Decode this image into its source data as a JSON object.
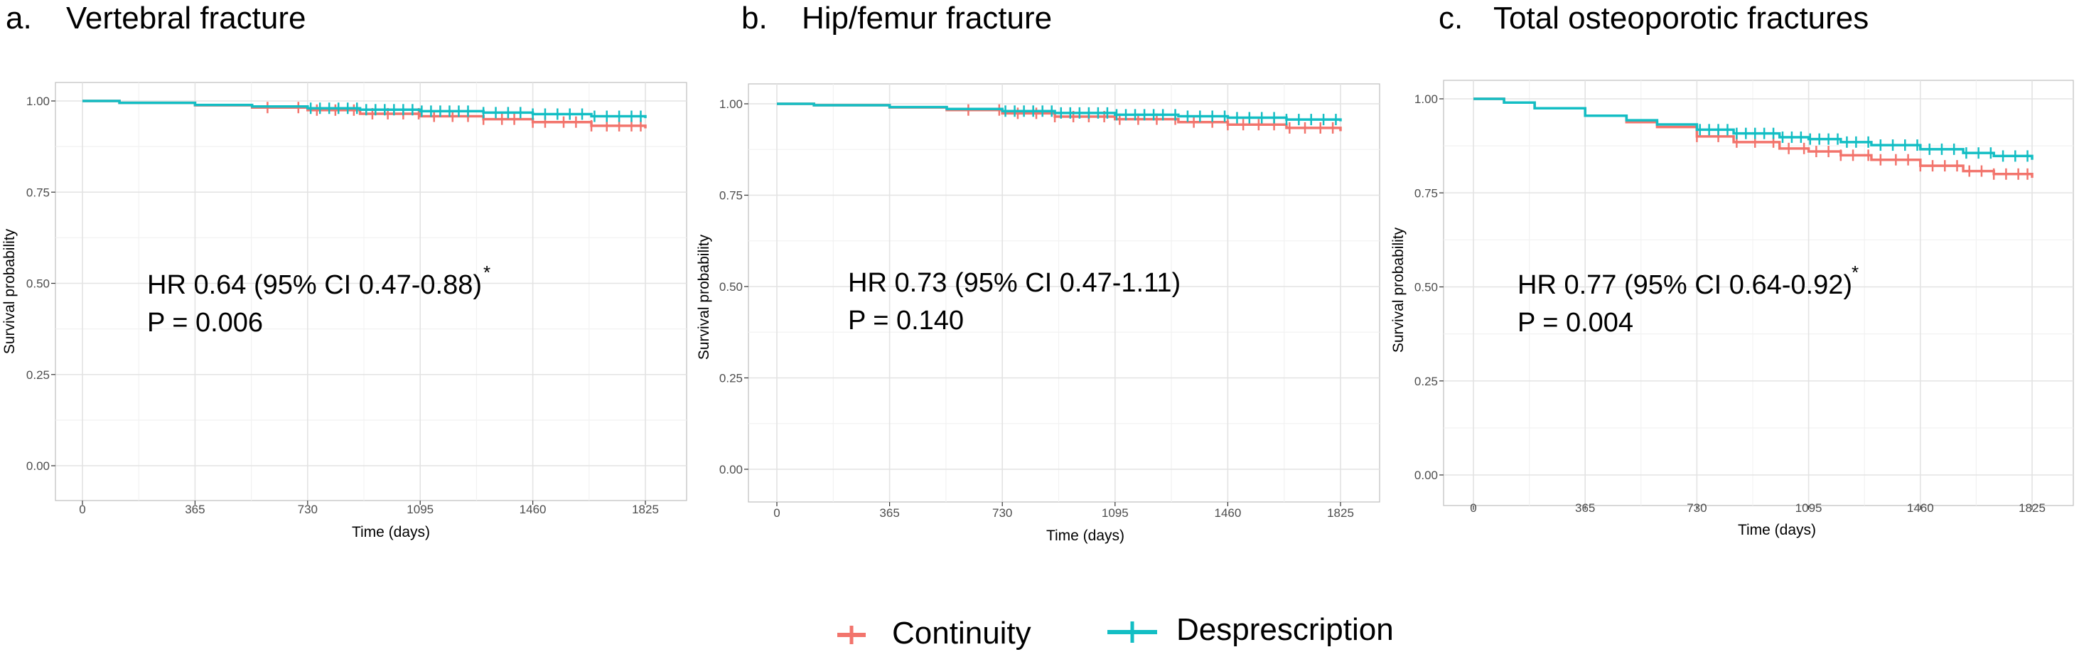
{
  "legend": {
    "items": [
      {
        "label": "Continuity",
        "color": "#F2746C"
      },
      {
        "label": "Desprescription",
        "color": "#13BEC4"
      }
    ]
  },
  "panels": [
    {
      "title_letter": "a.",
      "title": "Vertebral fracture",
      "annotation_line1": "HR 0.64 (95% CI 0.47-0.88)",
      "annotation_star": "*",
      "annotation_line2": "P = 0.006",
      "xlabel": "Time (days)",
      "ylabel": "Survival probability"
    },
    {
      "title_letter": "b.",
      "title": "Hip/femur fracture",
      "annotation_line1": "HR 0.73 (95% CI 0.47-1.11)",
      "annotation_star": "",
      "annotation_line2": "P = 0.140",
      "xlabel": "Time (days)",
      "ylabel": "Survival probability"
    },
    {
      "title_letter": "c.",
      "title": "Total osteoporotic fractures",
      "annotation_line1": "HR 0.77 (95% CI 0.64-0.92)",
      "annotation_star": "*",
      "annotation_line2": "P = 0.004",
      "xlabel": "Time (days)",
      "ylabel": "Survival probability"
    }
  ],
  "chart_data": [
    {
      "type": "line",
      "title": "Vertebral fracture",
      "xlabel": "Time (days)",
      "ylabel": "Survival probability",
      "xlim": [
        0,
        1825
      ],
      "ylim": [
        0,
        1
      ],
      "xticks": [
        0,
        365,
        730,
        1095,
        1460,
        1825
      ],
      "yticks": [
        "0.00",
        "0.25",
        "0.50",
        "0.75",
        "1.00"
      ],
      "grid": true,
      "series": [
        {
          "name": "Continuity",
          "color": "#F2746C",
          "x": [
            0,
            120,
            365,
            550,
            730,
            900,
            1095,
            1300,
            1460,
            1650,
            1825
          ],
          "y": [
            1.0,
            0.995,
            0.988,
            0.982,
            0.975,
            0.965,
            0.958,
            0.95,
            0.942,
            0.932,
            0.925
          ],
          "censor_x": [
            600,
            700,
            760,
            820,
            880,
            940,
            990,
            1040,
            1090,
            1140,
            1200,
            1250,
            1300,
            1360,
            1400,
            1460,
            1500,
            1560,
            1600,
            1650,
            1700,
            1740,
            1780,
            1810
          ]
        },
        {
          "name": "Desprescription",
          "color": "#13BEC4",
          "x": [
            0,
            120,
            365,
            550,
            730,
            900,
            1095,
            1300,
            1460,
            1650,
            1825
          ],
          "y": [
            1.0,
            0.995,
            0.989,
            0.985,
            0.98,
            0.976,
            0.972,
            0.968,
            0.964,
            0.958,
            0.953
          ],
          "censor_x": [
            740,
            770,
            800,
            830,
            860,
            890,
            920,
            950,
            980,
            1010,
            1040,
            1070,
            1100,
            1130,
            1160,
            1190,
            1220,
            1250,
            1300,
            1340,
            1380,
            1420,
            1460,
            1500,
            1540,
            1580,
            1620,
            1660,
            1700,
            1740,
            1780,
            1810
          ]
        }
      ]
    },
    {
      "type": "line",
      "title": "Hip/femur fracture",
      "xlabel": "Time (days)",
      "ylabel": "Survival probability",
      "xlim": [
        0,
        1825
      ],
      "ylim": [
        0,
        1
      ],
      "xticks": [
        0,
        365,
        730,
        1095,
        1460,
        1825
      ],
      "yticks": [
        "0.00",
        "0.25",
        "0.50",
        "0.75",
        "1.00"
      ],
      "grid": true,
      "series": [
        {
          "name": "Continuity",
          "color": "#F2746C",
          "x": [
            0,
            120,
            365,
            550,
            730,
            900,
            1095,
            1300,
            1460,
            1650,
            1825
          ],
          "y": [
            1.0,
            0.996,
            0.99,
            0.983,
            0.974,
            0.965,
            0.958,
            0.95,
            0.943,
            0.934,
            0.925
          ],
          "censor_x": [
            620,
            720,
            780,
            840,
            900,
            960,
            1010,
            1060,
            1110,
            1170,
            1230,
            1290,
            1350,
            1410,
            1460,
            1510,
            1560,
            1610,
            1660,
            1710,
            1760,
            1800
          ]
        },
        {
          "name": "Desprescription",
          "color": "#13BEC4",
          "x": [
            0,
            120,
            365,
            550,
            730,
            900,
            1095,
            1300,
            1460,
            1650,
            1825
          ],
          "y": [
            1.0,
            0.996,
            0.991,
            0.986,
            0.98,
            0.975,
            0.97,
            0.966,
            0.962,
            0.957,
            0.952
          ],
          "censor_x": [
            740,
            770,
            800,
            830,
            860,
            890,
            920,
            950,
            980,
            1010,
            1040,
            1070,
            1100,
            1130,
            1160,
            1190,
            1220,
            1250,
            1290,
            1330,
            1370,
            1410,
            1450,
            1490,
            1530,
            1570,
            1610,
            1650,
            1690,
            1730,
            1770,
            1810
          ]
        }
      ]
    },
    {
      "type": "line",
      "title": "Total osteoporotic fractures",
      "xlabel": "Time (days)",
      "ylabel": "Survival probability",
      "xlim": [
        0,
        1825
      ],
      "ylim": [
        0,
        1
      ],
      "xticks": [
        0,
        365,
        730,
        1095,
        1460,
        1825
      ],
      "yticks": [
        "0.00",
        "0.25",
        "0.50",
        "0.75",
        "1.00"
      ],
      "grid": true,
      "series": [
        {
          "name": "Continuity",
          "color": "#F2746C",
          "x": [
            0,
            100,
            200,
            365,
            500,
            600,
            730,
            850,
            1000,
            1095,
            1200,
            1300,
            1460,
            1600,
            1700,
            1825
          ],
          "y": [
            1.0,
            0.99,
            0.975,
            0.955,
            0.938,
            0.925,
            0.9,
            0.885,
            0.868,
            0.86,
            0.85,
            0.838,
            0.822,
            0.808,
            0.8,
            0.79
          ],
          "censor_x": [
            730,
            800,
            860,
            920,
            980,
            1030,
            1080,
            1120,
            1160,
            1200,
            1240,
            1290,
            1330,
            1380,
            1420,
            1460,
            1500,
            1540,
            1580,
            1620,
            1660,
            1700,
            1740,
            1780,
            1810
          ]
        },
        {
          "name": "Desprescription",
          "color": "#13BEC4",
          "x": [
            0,
            100,
            200,
            365,
            500,
            600,
            730,
            850,
            1000,
            1095,
            1200,
            1300,
            1460,
            1600,
            1700,
            1825
          ],
          "y": [
            1.0,
            0.99,
            0.975,
            0.955,
            0.943,
            0.932,
            0.918,
            0.908,
            0.898,
            0.893,
            0.885,
            0.877,
            0.866,
            0.856,
            0.848,
            0.838
          ],
          "censor_x": [
            740,
            770,
            800,
            830,
            860,
            890,
            920,
            950,
            980,
            1010,
            1040,
            1070,
            1100,
            1130,
            1160,
            1190,
            1220,
            1250,
            1290,
            1330,
            1370,
            1410,
            1450,
            1490,
            1530,
            1570,
            1610,
            1650,
            1690,
            1730,
            1770,
            1810
          ]
        }
      ]
    }
  ]
}
